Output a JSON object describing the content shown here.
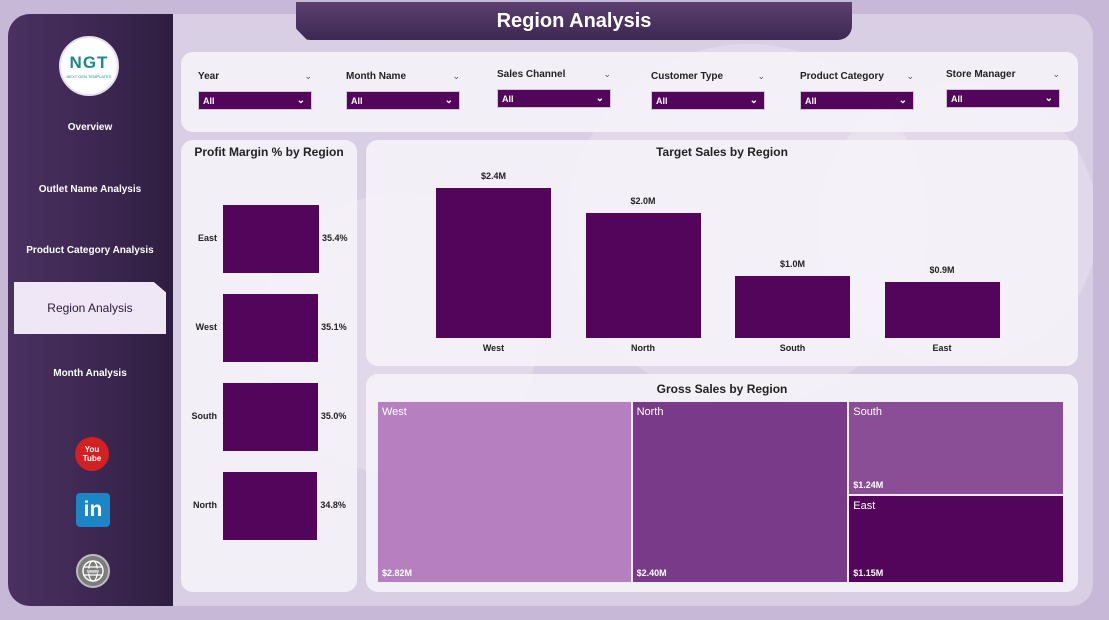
{
  "app": {
    "title": "Region Analysis"
  },
  "logo": {
    "text": "NGT",
    "sub": "NEXT GEN TEMPLATES"
  },
  "sidebar": {
    "items": [
      {
        "label": "Overview"
      },
      {
        "label": "Outlet Name Analysis"
      },
      {
        "label": "Product Category Analysis"
      },
      {
        "label": "Region Analysis",
        "active": true
      },
      {
        "label": "Month Analysis"
      }
    ],
    "social": [
      {
        "name": "youtube",
        "top": "You",
        "bottom": "Tube"
      },
      {
        "name": "linkedin",
        "text": "in"
      },
      {
        "name": "website",
        "text": "www"
      }
    ]
  },
  "filters": [
    {
      "label": "Year",
      "value": "All"
    },
    {
      "label": "Month Name",
      "value": "All"
    },
    {
      "label": "Sales Channel",
      "value": "All"
    },
    {
      "label": "Customer Type",
      "value": "All"
    },
    {
      "label": "Product Category",
      "value": "All"
    },
    {
      "label": "Store Manager",
      "value": "All"
    }
  ],
  "colors": {
    "bar": "#52055b",
    "sidebar": "#3b2650",
    "accent": "#52055b"
  },
  "chart_data": [
    {
      "type": "bar",
      "orientation": "horizontal",
      "title": "Profit Margin % by Region",
      "categories": [
        "East",
        "West",
        "South",
        "North"
      ],
      "values": [
        35.4,
        35.1,
        35.0,
        34.8
      ],
      "value_labels": [
        "35.4%",
        "35.1%",
        "35.0%",
        "34.8%"
      ]
    },
    {
      "type": "bar",
      "title": "Target Sales by Region",
      "categories": [
        "West",
        "North",
        "South",
        "East"
      ],
      "values": [
        2.4,
        2.0,
        1.0,
        0.9
      ],
      "value_labels": [
        "$2.4M",
        "$2.0M",
        "$1.0M",
        "$0.9M"
      ],
      "unit": "$M"
    },
    {
      "type": "treemap",
      "title": "Gross Sales by Region",
      "categories": [
        "West",
        "North",
        "South",
        "East"
      ],
      "values": [
        2.82,
        2.4,
        1.24,
        1.15
      ],
      "value_labels": [
        "$2.82M",
        "$2.40M",
        "$1.24M",
        "$1.15M"
      ],
      "colors": [
        "#b67fc0",
        "#7a3a8a",
        "#8a4e96",
        "#52055b"
      ],
      "unit": "$M"
    }
  ]
}
